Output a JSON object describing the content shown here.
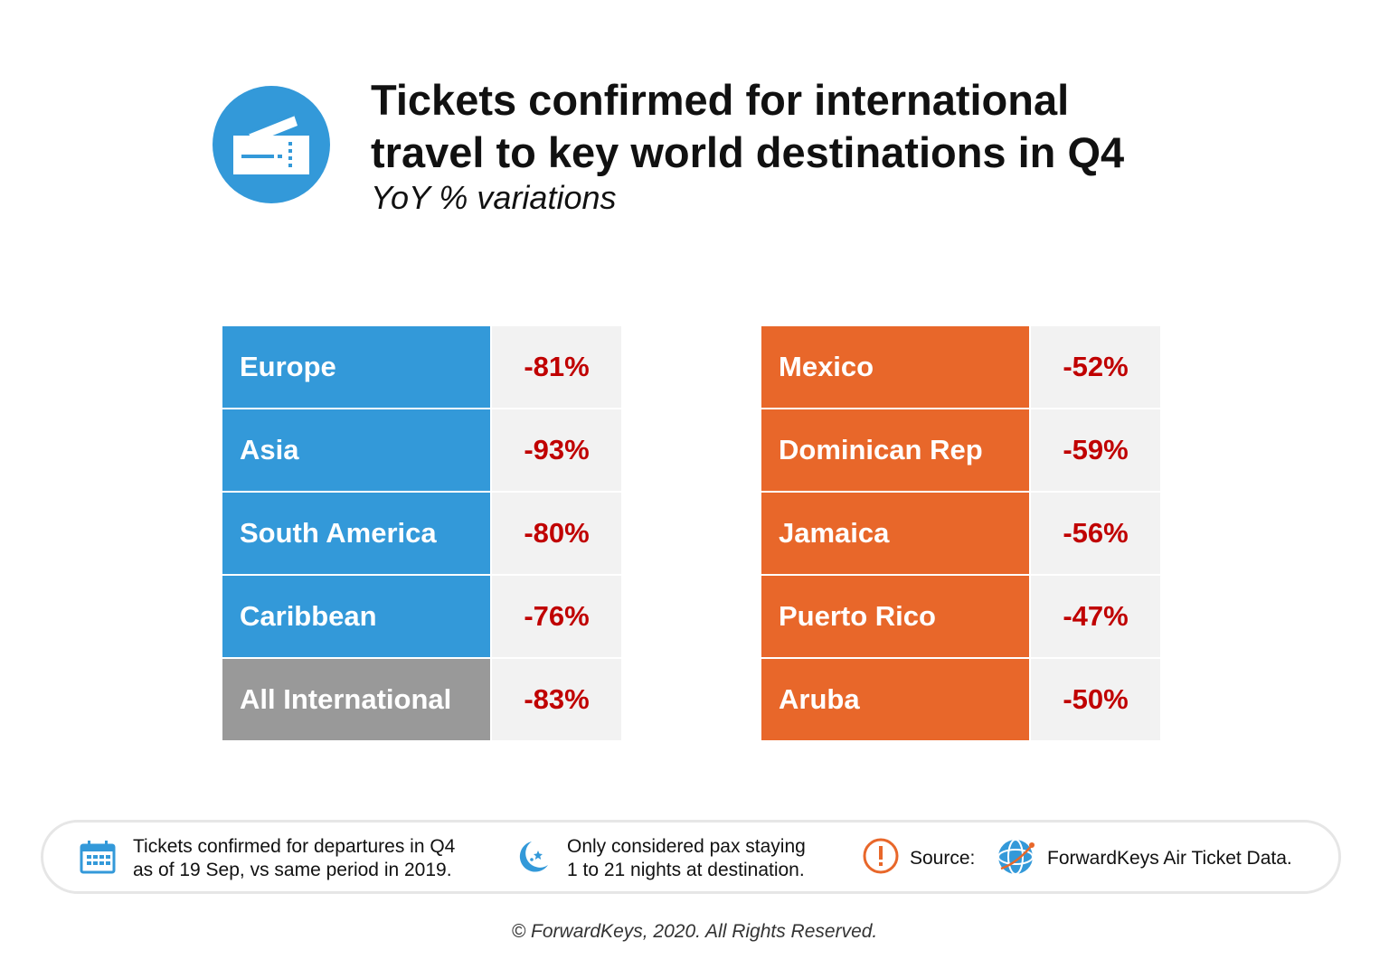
{
  "header": {
    "icon": "ticket-icon",
    "title_line1": "Tickets confirmed for international",
    "title_line2": "travel to key world destinations in Q4",
    "subtitle": "YoY % variations"
  },
  "colors": {
    "blue": "#3399d9",
    "grey": "#999999",
    "orange": "#e8672a",
    "value_red": "#c00000",
    "value_bg": "#f2f2f2"
  },
  "chart_data": {
    "type": "table",
    "title": "Tickets confirmed for international travel to key world destinations in Q4",
    "subtitle": "YoY % variations",
    "tables": [
      {
        "rows": [
          {
            "label": "Europe",
            "value": "-81%",
            "color": "#3399d9"
          },
          {
            "label": "Asia",
            "value": "-93%",
            "color": "#3399d9"
          },
          {
            "label": "South America",
            "value": "-80%",
            "color": "#3399d9"
          },
          {
            "label": "Caribbean",
            "value": "-76%",
            "color": "#3399d9"
          },
          {
            "label": "All International",
            "value": "-83%",
            "color": "#999999"
          }
        ]
      },
      {
        "rows": [
          {
            "label": "Mexico",
            "value": "-52%",
            "color": "#e8672a"
          },
          {
            "label": "Dominican Rep",
            "value": "-59%",
            "color": "#e8672a"
          },
          {
            "label": "Jamaica",
            "value": "-56%",
            "color": "#e8672a"
          },
          {
            "label": "Puerto Rico",
            "value": "-47%",
            "color": "#e8672a"
          },
          {
            "label": "Aruba",
            "value": "-50%",
            "color": "#e8672a"
          }
        ]
      }
    ]
  },
  "footer": {
    "note1_icon": "calendar-icon",
    "note1_line1": "Tickets confirmed for departures in Q4",
    "note1_line2": "as of 19 Sep, vs same period in 2019.",
    "note2_icon": "moon-stars-icon",
    "note2_line1": "Only considered pax staying",
    "note2_line2": "1 to 21 nights at destination.",
    "source_icon": "exclamation-icon",
    "source_label": "Source:",
    "source_logo": "globe-icon",
    "source_name": "ForwardKeys Air Ticket Data."
  },
  "copyright": "© ForwardKeys, 2020. All Rights Reserved."
}
